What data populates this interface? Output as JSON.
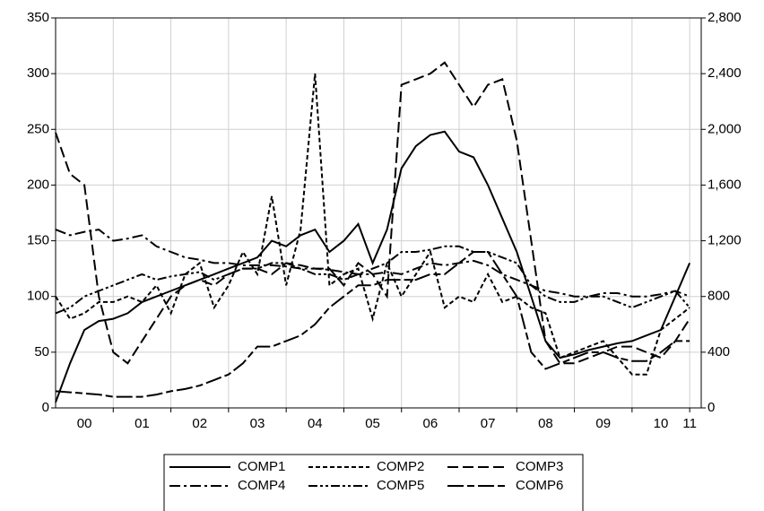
{
  "chart_data": {
    "type": "line",
    "x": [
      2000,
      2000.25,
      2000.5,
      2000.75,
      2001,
      2001.25,
      2001.5,
      2001.75,
      2002,
      2002.25,
      2002.5,
      2002.75,
      2003,
      2003.25,
      2003.5,
      2003.75,
      2004,
      2004.25,
      2004.5,
      2004.75,
      2005,
      2005.25,
      2005.5,
      2005.75,
      2006,
      2006.25,
      2006.5,
      2006.75,
      2007,
      2007.25,
      2007.5,
      2007.75,
      2008,
      2008.25,
      2008.5,
      2008.75,
      2009,
      2009.25,
      2009.5,
      2009.75,
      2010,
      2010.25,
      2010.5,
      2010.75,
      2011
    ],
    "xlim": [
      2000,
      2011.2
    ],
    "xticks": [
      {
        "value": 2000.5,
        "label": "00"
      },
      {
        "value": 2001.5,
        "label": "01"
      },
      {
        "value": 2002.5,
        "label": "02"
      },
      {
        "value": 2003.5,
        "label": "03"
      },
      {
        "value": 2004.5,
        "label": "04"
      },
      {
        "value": 2005.5,
        "label": "05"
      },
      {
        "value": 2006.5,
        "label": "06"
      },
      {
        "value": 2007.5,
        "label": "07"
      },
      {
        "value": 2008.5,
        "label": "08"
      },
      {
        "value": 2009.5,
        "label": "09"
      },
      {
        "value": 2010.5,
        "label": "10"
      },
      {
        "value": 2011,
        "label": "11"
      }
    ],
    "xgrid": [
      2001,
      2002,
      2003,
      2004,
      2005,
      2006,
      2007,
      2008,
      2009,
      2010,
      2011
    ],
    "ylim": [
      0,
      350
    ],
    "yticks": [
      0,
      50,
      100,
      150,
      200,
      250,
      300,
      350
    ],
    "y2lim": [
      0,
      2800
    ],
    "y2ticks": [
      0,
      400,
      800,
      {
        "value": 1200,
        "label": "1,200"
      },
      {
        "value": 1600,
        "label": "1,600"
      },
      {
        "value": 2000,
        "label": "2,000"
      },
      {
        "value": 2400,
        "label": "2,400"
      },
      {
        "value": 2800,
        "label": "2,800"
      }
    ],
    "grid": true,
    "legend": "bottom",
    "series": [
      {
        "name": "COMP1",
        "color": "#000000",
        "dash": "none",
        "values": [
          5,
          40,
          70,
          78,
          80,
          85,
          95,
          100,
          105,
          110,
          115,
          120,
          125,
          130,
          135,
          150,
          145,
          155,
          160,
          140,
          150,
          165,
          130,
          160,
          215,
          235,
          245,
          248,
          230,
          225,
          200,
          170,
          140,
          100,
          60,
          45,
          48,
          52,
          55,
          58,
          60,
          65,
          70,
          100,
          130
        ]
      },
      {
        "name": "COMP2",
        "color": "#000000",
        "dash": "5 3",
        "values": [
          100,
          80,
          85,
          95,
          95,
          100,
          95,
          110,
          85,
          120,
          130,
          90,
          110,
          140,
          120,
          190,
          110,
          160,
          300,
          110,
          120,
          125,
          80,
          130,
          100,
          120,
          140,
          90,
          100,
          95,
          120,
          95,
          100,
          90,
          85,
          45,
          50,
          55,
          60,
          45,
          30,
          30,
          70,
          80,
          90
        ]
      },
      {
        "name": "COMP3",
        "color": "#000000",
        "dash": "12 5",
        "values": [
          247,
          210,
          200,
          100,
          50,
          40,
          60,
          80,
          100,
          110,
          115,
          110,
          120,
          125,
          125,
          120,
          130,
          128,
          125,
          125,
          110,
          130,
          120,
          100,
          290,
          295,
          300,
          310,
          290,
          270,
          290,
          295,
          240,
          150,
          60,
          40,
          40,
          45,
          50,
          55,
          55,
          50,
          45,
          60,
          80
        ]
      },
      {
        "name": "COMP4",
        "color": "#000000",
        "dash": "12 4 3 4",
        "values": [
          160,
          155,
          158,
          160,
          150,
          152,
          155,
          145,
          140,
          135,
          133,
          130,
          130,
          128,
          128,
          128,
          127,
          125,
          125,
          124,
          122,
          120,
          120,
          122,
          120,
          125,
          130,
          128,
          130,
          132,
          128,
          120,
          115,
          110,
          105,
          103,
          100,
          100,
          103,
          103,
          100,
          100,
          102,
          105,
          100
        ]
      },
      {
        "name": "COMP5",
        "color": "#000000",
        "dash": "10 3 3 3 3 3",
        "values": [
          85,
          90,
          100,
          105,
          110,
          115,
          120,
          115,
          118,
          120,
          122,
          115,
          120,
          125,
          125,
          130,
          130,
          125,
          120,
          120,
          115,
          120,
          125,
          130,
          140,
          140,
          142,
          145,
          145,
          140,
          140,
          135,
          130,
          110,
          100,
          95,
          95,
          100,
          100,
          95,
          90,
          95,
          100,
          105,
          90
        ]
      },
      {
        "name": "COMP6",
        "color": "#000000",
        "dash": "18 4 8 4",
        "axis": "y2",
        "values": [
          120,
          112,
          104,
          96,
          80,
          80,
          80,
          96,
          120,
          136,
          160,
          200,
          240,
          320,
          440,
          440,
          480,
          520,
          600,
          720,
          800,
          880,
          880,
          920,
          920,
          920,
          960,
          960,
          1040,
          1120,
          1120,
          960,
          800,
          400,
          280,
          320,
          360,
          400,
          400,
          360,
          336,
          336,
          400,
          480,
          480
        ]
      }
    ]
  }
}
